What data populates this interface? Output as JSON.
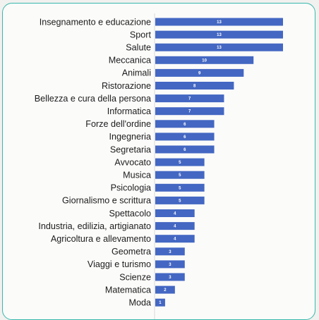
{
  "chart_data": {
    "type": "bar",
    "orientation": "horizontal",
    "title": "",
    "xlabel": "",
    "ylabel": "",
    "grid": true,
    "xlim": [
      0,
      13
    ],
    "color": "#4367c2",
    "categories": [
      "Insegnamento e educazione",
      "Sport",
      "Salute",
      "Meccanica",
      "Animali",
      "Ristorazione",
      "Bellezza e cura della persona",
      "Informatica",
      "Forze dell'ordine",
      "Ingegneria",
      "Segretaria",
      "Avvocato",
      "Musica",
      "Psicologia",
      "Giornalismo e scrittura",
      "Spettacolo",
      "Industria, edilizia, artigianato",
      "Agricoltura e allevamento",
      "Geometra",
      "Viaggi e turismo",
      "Scienze",
      "Matematica",
      "Moda"
    ],
    "values": [
      13,
      13,
      13,
      10,
      9,
      8,
      7,
      7,
      6,
      6,
      6,
      5,
      5,
      5,
      5,
      4,
      4,
      4,
      3,
      3,
      3,
      2,
      1
    ]
  }
}
